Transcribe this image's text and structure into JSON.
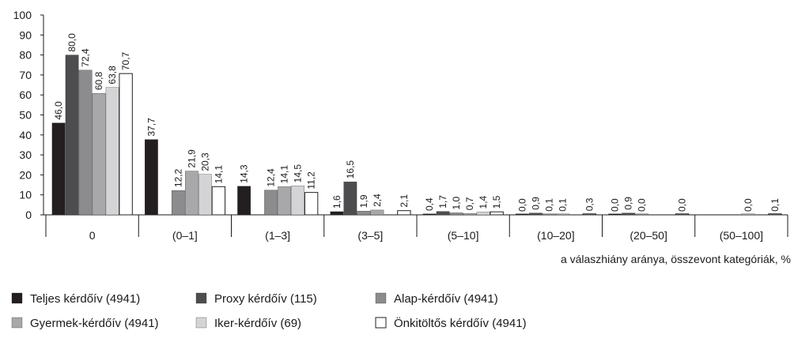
{
  "chart_data": {
    "type": "bar",
    "categories": [
      "0",
      "(0–1]",
      "(1–3]",
      "(3–5]",
      "(5–10]",
      "(10–20]",
      "(20–50]",
      "(50–100]"
    ],
    "xlabel": "a válaszhiány aránya, összevont kategóriák, %",
    "ylabel": "",
    "ylim": [
      0,
      100
    ],
    "yticks": [
      "0",
      "10",
      "20",
      "30",
      "40",
      "50",
      "60",
      "70",
      "80",
      "90",
      "100"
    ],
    "grid": false,
    "legend_position": "bottom",
    "series": [
      {
        "name": "Teljes kérdőív (4941)",
        "color": "#231f20",
        "values": [
          46.0,
          37.7,
          14.3,
          1.6,
          0.4,
          0.0,
          0.0,
          null
        ],
        "labels": [
          "46,0",
          "37,7",
          "14,3",
          "1,6",
          "0,4",
          "0,0",
          "0,0",
          ""
        ]
      },
      {
        "name": "Proxy kérdőív (115)",
        "color": "#4d4d4f",
        "values": [
          80.0,
          null,
          null,
          16.5,
          1.7,
          0.9,
          0.9,
          null
        ],
        "labels": [
          "80,0",
          "",
          "",
          "16,5",
          "1,7",
          "0,9",
          "0,9",
          ""
        ]
      },
      {
        "name": "Alap-kérdőív (4941)",
        "color": "#8c8c8e",
        "values": [
          72.4,
          12.2,
          12.4,
          1.9,
          1.0,
          0.1,
          0.0,
          null
        ],
        "labels": [
          "72,4",
          "12,2",
          "12,4",
          "1,9",
          "1,0",
          "0,1",
          "0,0",
          ""
        ]
      },
      {
        "name": "Gyermek-kérdőív (4941)",
        "color": "#a8a8aa",
        "values": [
          60.8,
          21.9,
          14.1,
          2.4,
          0.7,
          0.1,
          null,
          0.0
        ],
        "labels": [
          "60,8",
          "21,9",
          "14,1",
          "2,4",
          "0,7",
          "0,1",
          "",
          "0,0"
        ]
      },
      {
        "name": "Iker-kérdőív (69)",
        "color": "#d4d4d6",
        "values": [
          63.8,
          20.3,
          14.5,
          null,
          1.4,
          null,
          null,
          null
        ],
        "labels": [
          "63,8",
          "20,3",
          "14,5",
          "",
          "1,4",
          "",
          "",
          ""
        ]
      },
      {
        "name": "Önkitöltős kérdőív (4941)",
        "color": "#ffffff",
        "values": [
          70.7,
          14.1,
          11.2,
          2.1,
          1.5,
          0.3,
          0.0,
          0.1
        ],
        "labels": [
          "70,7",
          "14,1",
          "11,2",
          "2,1",
          "1,5",
          "0,3",
          "0,0",
          "0,1"
        ]
      }
    ]
  }
}
